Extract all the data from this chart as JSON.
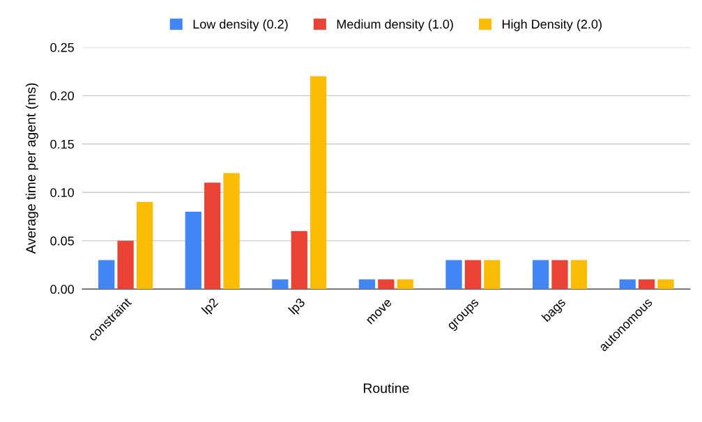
{
  "chart_data": {
    "type": "bar",
    "xlabel": "Routine",
    "ylabel": "Average time per agent (ms)",
    "categories": [
      "constraint",
      "lp2",
      "lp3",
      "move",
      "groups",
      "bags",
      "autonomous"
    ],
    "series": [
      {
        "name": "Low density (0.2)",
        "color": "#4285f4",
        "values": [
          0.03,
          0.08,
          0.01,
          0.01,
          0.03,
          0.03,
          0.01
        ]
      },
      {
        "name": "Medium density (1.0)",
        "color": "#ea4335",
        "values": [
          0.05,
          0.11,
          0.06,
          0.01,
          0.03,
          0.03,
          0.01
        ]
      },
      {
        "name": "High Density (2.0)",
        "color": "#fbbc04",
        "values": [
          0.09,
          0.12,
          0.22,
          0.01,
          0.03,
          0.03,
          0.01
        ]
      }
    ],
    "ylim": [
      0,
      0.25
    ],
    "yticks": [
      {
        "value": 0,
        "label": "0.00"
      },
      {
        "value": 0.05,
        "label": "0.05"
      },
      {
        "value": 0.1,
        "label": "0.10"
      },
      {
        "value": 0.15,
        "label": "0.15"
      },
      {
        "value": 0.2,
        "label": "0.20"
      },
      {
        "value": 0.25,
        "label": "0.25"
      }
    ],
    "grid": "y",
    "legend": "top"
  }
}
